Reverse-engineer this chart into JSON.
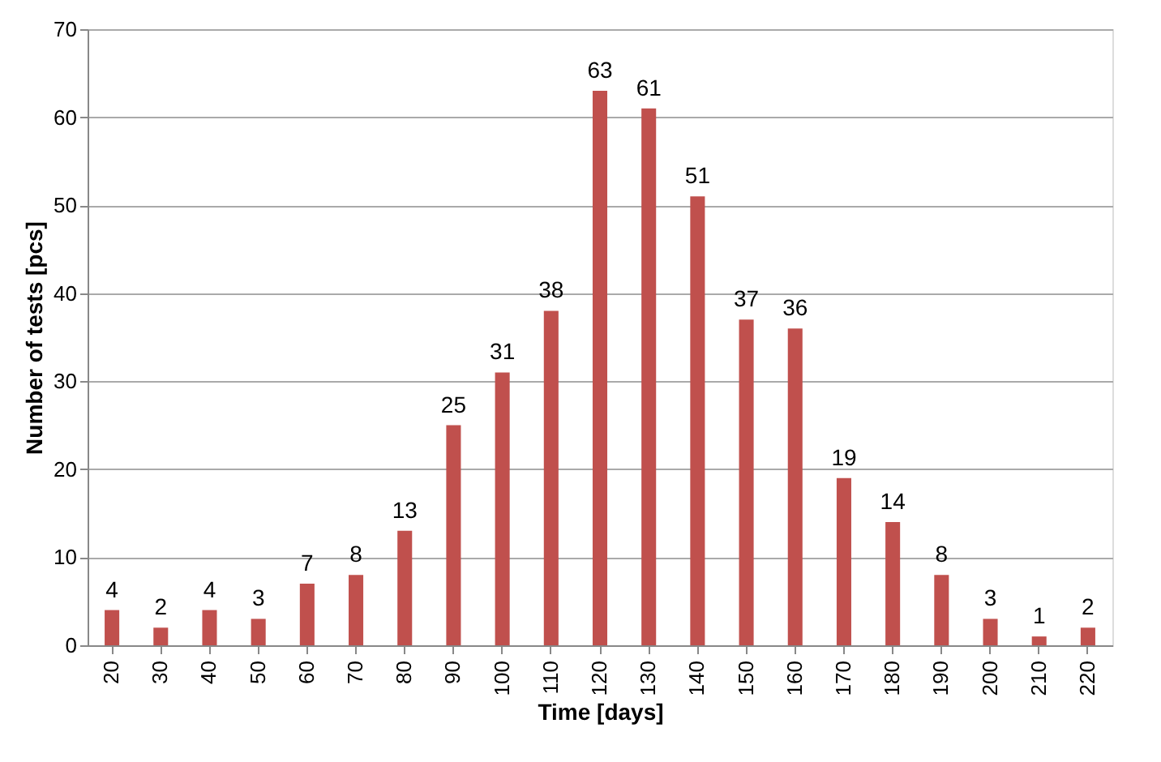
{
  "chart_data": {
    "type": "bar",
    "xlabel": "Time [days]",
    "ylabel": "Number of tests [pcs]",
    "categories": [
      "20",
      "30",
      "40",
      "50",
      "60",
      "70",
      "80",
      "90",
      "100",
      "110",
      "120",
      "130",
      "140",
      "150",
      "160",
      "170",
      "180",
      "190",
      "200",
      "210",
      "220"
    ],
    "values": [
      4,
      2,
      4,
      3,
      7,
      8,
      13,
      25,
      31,
      38,
      63,
      61,
      51,
      37,
      36,
      19,
      14,
      8,
      3,
      1,
      2
    ],
    "color": "#c0504d",
    "ylim": [
      0,
      70
    ],
    "yticks": [
      0,
      10,
      20,
      30,
      40,
      50,
      60,
      70
    ],
    "grid": "y",
    "data_labels": true
  }
}
